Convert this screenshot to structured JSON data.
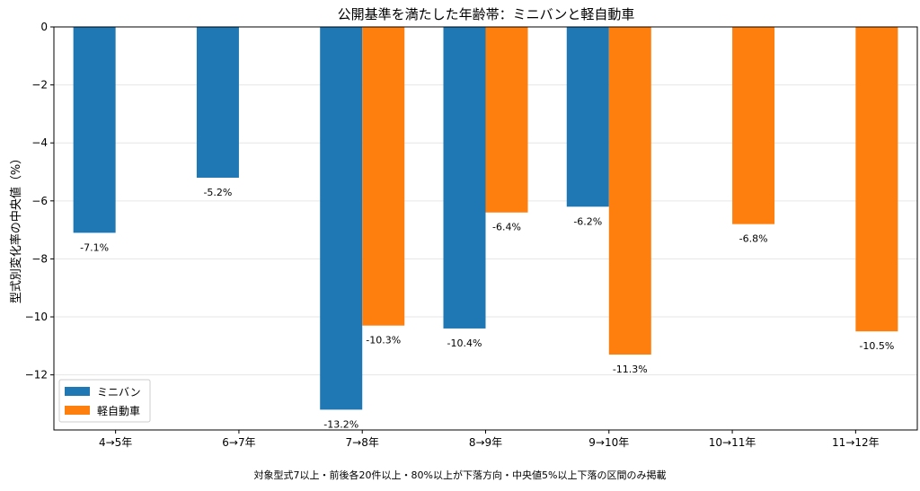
{
  "chart_data": {
    "type": "bar",
    "title": "公開基準を満たした年齢帯：ミニバンと軽自動車",
    "ylabel": "型式別変化率の中央値（%）",
    "xlabel": "",
    "footnote": "対象型式7以上・前後各20件以上・80%以上が下落方向・中央値5%以上下落の区間のみ掲載",
    "categories": [
      "4→5年",
      "6→7年",
      "7→8年",
      "8→9年",
      "9→10年",
      "10→11年",
      "11→12年"
    ],
    "ylim": [
      -13.9,
      0
    ],
    "yticks": [
      0,
      -2,
      -4,
      -6,
      -8,
      -10,
      -12
    ],
    "ytick_labels": [
      "0",
      "−2",
      "−4",
      "−6",
      "−8",
      "−10",
      "−12"
    ],
    "grid": "horizontal",
    "legend_position": "bottom-left",
    "series": [
      {
        "name": "ミニバン",
        "color": "#1f77b4",
        "values": [
          -7.1,
          -5.2,
          -13.2,
          -10.4,
          -6.2,
          null,
          null
        ],
        "labels": [
          "-7.1%",
          "-5.2%",
          "-13.2%",
          "-10.4%",
          "-6.2%",
          null,
          null
        ]
      },
      {
        "name": "軽自動車",
        "color": "#ff7f0e",
        "values": [
          null,
          null,
          -10.3,
          -6.4,
          -11.3,
          -6.8,
          -10.5
        ],
        "labels": [
          null,
          null,
          "-10.3%",
          "-6.4%",
          "-11.3%",
          "-6.8%",
          "-10.5%"
        ]
      }
    ]
  }
}
